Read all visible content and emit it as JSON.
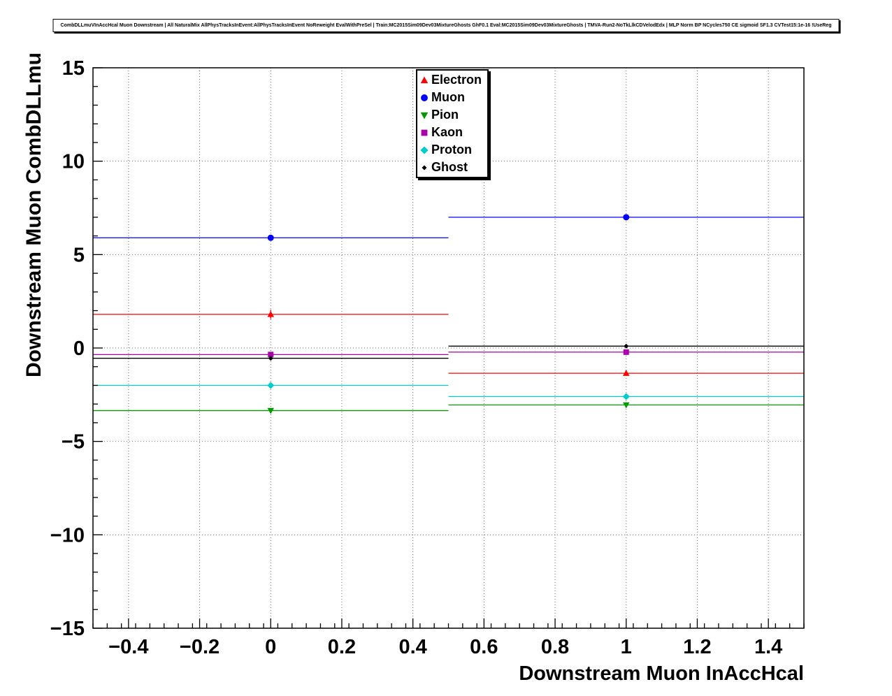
{
  "chart_data": {
    "type": "line",
    "title": "CombDLLmuVInAccHcal Muon Downstream | All NaturalMix AllPhysTracksInEvent:AllPhysTracksInEvent NoReweight EvalWithPreSel | Train:MC2015Sim09Dev03MixtureGhosts GhF0.1 Eval:MC2015Sim09Dev03MixtureGhosts | TMVA-Run2-NoTkLlkCDVelodEdx | MLP Norm BP NCycles750 CE sigmoid SF1.3 CVTest15:1e-16 !UseReg",
    "xlabel": "Downstream Muon InAccHcal",
    "ylabel": "Downstream Muon CombDLLmu",
    "xlim": [
      -0.5,
      1.5
    ],
    "ylim": [
      -15,
      15
    ],
    "grid": true,
    "legend_position": "top-center",
    "x_bin_centers": [
      0,
      1
    ],
    "x_bin_halfwidth": 0.5,
    "x_minor_step": 0.04,
    "y_minor_step": 1,
    "xticks": {
      "values": [
        -0.4,
        -0.2,
        0,
        0.2,
        0.4,
        0.6,
        0.8,
        1,
        1.2,
        1.4
      ],
      "labels": [
        "−0.4",
        "−0.2",
        "0",
        "0.2",
        "0.4",
        "0.6",
        "0.8",
        "1",
        "1.2",
        "1.4"
      ]
    },
    "yticks": {
      "values": [
        -15,
        -10,
        -5,
        0,
        5,
        10,
        15
      ],
      "labels": [
        "−15",
        "−10",
        "−5",
        "0",
        "5",
        "10",
        "15"
      ]
    },
    "series": [
      {
        "name": "Electron",
        "marker": "triangle-up",
        "color": "#ff0000",
        "values": [
          1.8,
          -1.35
        ],
        "errors": [
          0.25,
          0.1
        ]
      },
      {
        "name": "Muon",
        "marker": "circle",
        "color": "#0000ff",
        "values": [
          5.9,
          7.0
        ],
        "errors": [
          0.12,
          0.06
        ]
      },
      {
        "name": "Pion",
        "marker": "triangle-down",
        "color": "#009900",
        "values": [
          -3.35,
          -3.05
        ],
        "errors": [
          0.06,
          0.04
        ]
      },
      {
        "name": "Kaon",
        "marker": "square",
        "color": "#aa00aa",
        "values": [
          -0.35,
          -0.22
        ],
        "errors": [
          0.1,
          0.05
        ]
      },
      {
        "name": "Proton",
        "marker": "diamond",
        "color": "#00cccc",
        "values": [
          -2.0,
          -2.6
        ],
        "errors": [
          0.08,
          0.05
        ]
      },
      {
        "name": "Ghost",
        "marker": "diamond-small",
        "color": "#000000",
        "values": [
          -0.55,
          0.1
        ],
        "errors": [
          0.1,
          0.04
        ]
      }
    ]
  }
}
